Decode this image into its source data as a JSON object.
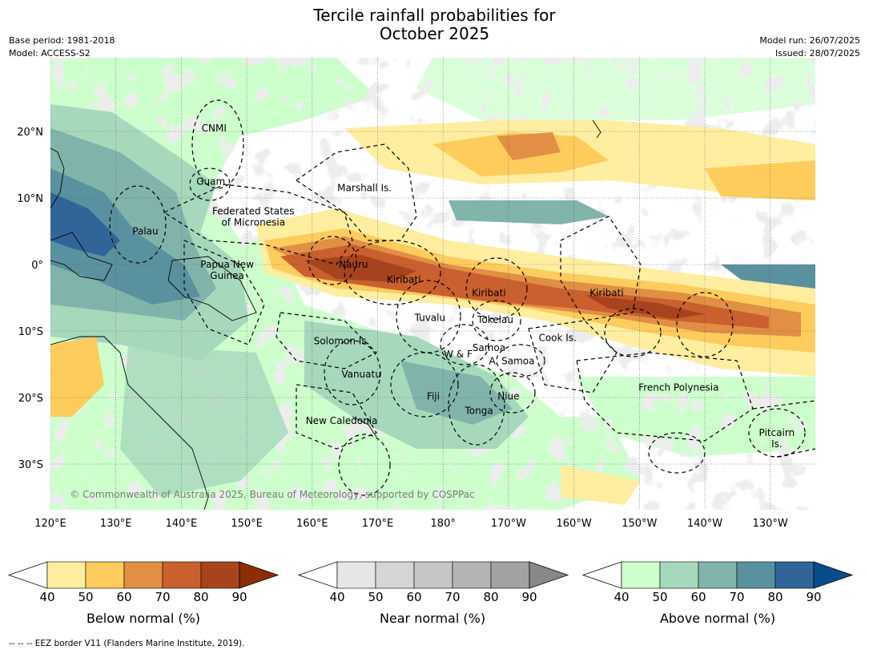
{
  "title_line1": "Tercile rainfall probabilities for",
  "title_line2": "October 2025",
  "meta_left": [
    "Base period: 1981-2018",
    "Model: ACCESS-S2"
  ],
  "meta_right": [
    "Model run: 26/07/2025",
    "Issued: 28/07/2025"
  ],
  "lon_ticks": [
    "120°E",
    "130°E",
    "140°E",
    "150°E",
    "160°E",
    "170°E",
    "180°",
    "170°W",
    "160°W",
    "150°W",
    "140°W",
    "130°W"
  ],
  "lat_ticks": [
    "20°N",
    "10°N",
    "0°",
    "10°S",
    "20°S",
    "30°S"
  ],
  "copyright": "© Commonwealth of Australia 2025, Bureau of Meteorology, supported by COSPPac",
  "regions": [
    {
      "name": "CNMI",
      "lon": 145,
      "lat": 20.5
    },
    {
      "name": "Guam",
      "lon": 144.5,
      "lat": 12.5
    },
    {
      "name": "Marshall Is.",
      "lon": 168,
      "lat": 11.5
    },
    {
      "name": "Federated States",
      "lon": 151,
      "lat": 8
    },
    {
      "name": "of Micronesia",
      "lon": 151,
      "lat": 6.3
    },
    {
      "name": "Palau",
      "lon": 134.5,
      "lat": 5
    },
    {
      "name": "Papua New",
      "lon": 147,
      "lat": 0
    },
    {
      "name": "Guinea",
      "lon": 147,
      "lat": -1.7
    },
    {
      "name": "Nauru",
      "lon": 166.3,
      "lat": 0
    },
    {
      "name": "Kiribati",
      "lon": 174,
      "lat": -2.3
    },
    {
      "name": "Kiribati",
      "lon": 187,
      "lat": -4.3
    },
    {
      "name": "Kiribati",
      "lon": 205,
      "lat": -4.3
    },
    {
      "name": "Tuvalu",
      "lon": 178,
      "lat": -8
    },
    {
      "name": "Tokelau",
      "lon": 188,
      "lat": -8.3
    },
    {
      "name": "Solomon Is.",
      "lon": 164.5,
      "lat": -11.5
    },
    {
      "name": "Cook Is.",
      "lon": 197.5,
      "lat": -11
    },
    {
      "name": "Samoa",
      "lon": 187,
      "lat": -12.5
    },
    {
      "name": "W & F",
      "lon": 182.3,
      "lat": -13.5
    },
    {
      "name": "A. Samoa",
      "lon": 190.5,
      "lat": -14.5
    },
    {
      "name": "Vanuatu",
      "lon": 167.5,
      "lat": -16.5
    },
    {
      "name": "French Polynesia",
      "lon": 216,
      "lat": -18.5
    },
    {
      "name": "Fiji",
      "lon": 178.5,
      "lat": -19.8
    },
    {
      "name": "Niue",
      "lon": 190,
      "lat": -19.8
    },
    {
      "name": "Tonga",
      "lon": 185.5,
      "lat": -22
    },
    {
      "name": "New Caledonia",
      "lon": 164.5,
      "lat": -23.5
    },
    {
      "name": "Pitcairn",
      "lon": 231,
      "lat": -25.3
    },
    {
      "name": "Is.",
      "lon": 231,
      "lat": -27
    }
  ],
  "colorbars": [
    {
      "label": "Below normal (%)",
      "ticks": [
        "40",
        "50",
        "60",
        "70",
        "80",
        "90"
      ],
      "colors": [
        "#ffeda0",
        "#fecc5c",
        "#e08f45",
        "#c9602e",
        "#a8431e"
      ],
      "under": "#ffffff",
      "over": "#8c2d04"
    },
    {
      "label": "Near normal (%)",
      "ticks": [
        "40",
        "50",
        "60",
        "70",
        "80",
        "90"
      ],
      "colors": [
        "#e6e6e6",
        "#d6d6d6",
        "#c6c6c6",
        "#b4b4b4",
        "#a2a2a2"
      ],
      "under": "#ffffff",
      "over": "#888888"
    },
    {
      "label": "Above normal (%)",
      "ticks": [
        "40",
        "50",
        "60",
        "70",
        "80",
        "90"
      ],
      "colors": [
        "#ccffcc",
        "#a6d8bc",
        "#80b4ab",
        "#5a919e",
        "#31659a"
      ],
      "under": "#ffffff",
      "over": "#084c8c"
    }
  ],
  "footer": "--  --  -- EEZ border V11 (Flanders Marine Institute, 2019)."
}
